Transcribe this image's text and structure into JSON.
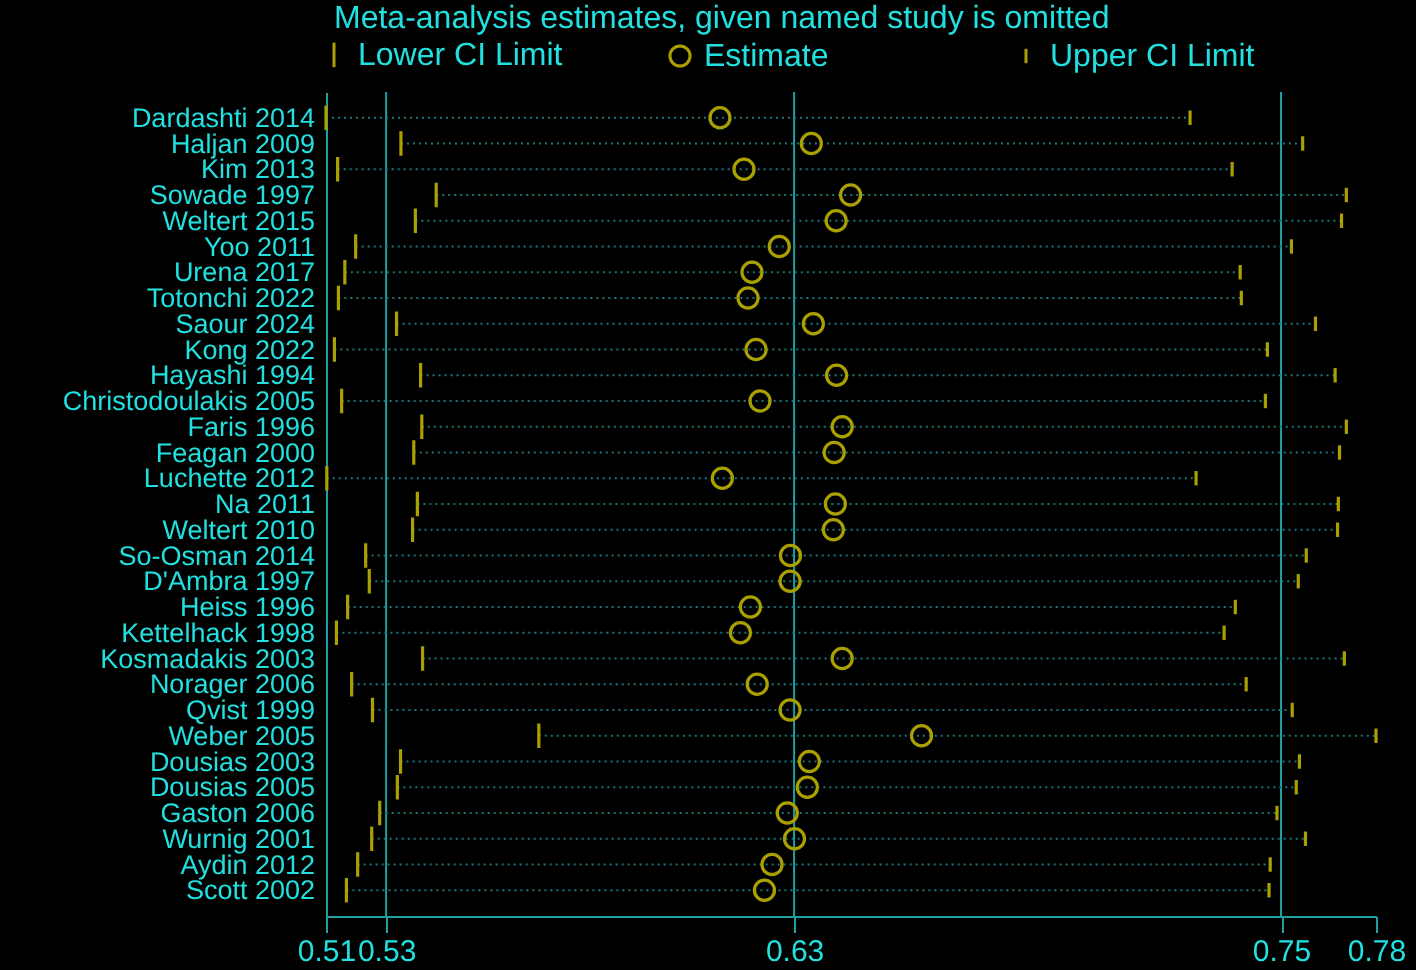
{
  "chart_data": {
    "type": "scatter",
    "orientation": "horizontal",
    "title": "Meta-analysis estimates, given named study is omitted",
    "categories": [
      "Dardashti 2014",
      "Haljan 2009",
      "Kim 2013",
      "Sowade 1997",
      "Weltert 2015",
      "Yoo 2011",
      "Urena 2017",
      "Totonchi 2022",
      "Saour 2024",
      "Kong 2022",
      "Hayashi 1994",
      "Christodoulakis 2005",
      "Faris 1996",
      "Feagan 2000",
      "Luchette 2012",
      "Na 2011",
      "Weltert 2010",
      "So-Osman 2014",
      "D'Ambra 1997",
      "Heiss 1996",
      "Kettelhack 1998",
      "Kosmadakis 2003",
      "Norager 2006",
      "Qvist 1999",
      "Weber 2005",
      "Dousias 2003",
      "Dousias 2005",
      "Gaston 2006",
      "Wurnig 2001",
      "Aydin 2012",
      "Scott 2002"
    ],
    "series": [
      {
        "name": "Lower CI Limit",
        "color": "#aaa000",
        "values": [
          0.5135,
          0.5322,
          0.5164,
          0.541,
          0.5358,
          0.5209,
          0.5182,
          0.5166,
          0.5311,
          0.5156,
          0.5371,
          0.5174,
          0.5374,
          0.5354,
          0.5137,
          0.5363,
          0.5351,
          0.5234,
          0.5243,
          0.5189,
          0.5161,
          0.5376,
          0.5199,
          0.5251,
          0.5666,
          0.5321,
          0.5313,
          0.5269,
          0.5249,
          0.5214,
          0.5186
        ]
      },
      {
        "name": "Estimate",
        "color": "#aaa000",
        "marker": "circle",
        "values": [
          0.6118,
          0.6346,
          0.6178,
          0.6444,
          0.6408,
          0.6266,
          0.6198,
          0.6188,
          0.6351,
          0.6208,
          0.6409,
          0.6218,
          0.6423,
          0.6403,
          0.6124,
          0.6406,
          0.6401,
          0.6294,
          0.6293,
          0.6194,
          0.6169,
          0.6423,
          0.6211,
          0.6293,
          0.6621,
          0.6341,
          0.6336,
          0.6286,
          0.6304,
          0.6248,
          0.6229
        ]
      },
      {
        "name": "Upper CI Limit",
        "color": "#aaa000",
        "values": [
          0.7291,
          0.7572,
          0.7396,
          0.7681,
          0.7669,
          0.7544,
          0.7416,
          0.7419,
          0.7604,
          0.7484,
          0.7653,
          0.7479,
          0.7681,
          0.7664,
          0.7306,
          0.7661,
          0.7659,
          0.7581,
          0.7561,
          0.7404,
          0.7376,
          0.7676,
          0.7431,
          0.7546,
          0.7755,
          0.7564,
          0.7556,
          0.7508,
          0.7579,
          0.7491,
          0.7488
        ]
      }
    ],
    "xlim": [
      0.5135,
      0.7755
    ],
    "xticks": [
      {
        "value": 0.5135,
        "label": "0.51"
      },
      {
        "value": 0.5285,
        "label": "0.53"
      },
      {
        "value": 0.6303,
        "label": "0.63"
      },
      {
        "value": 0.7518,
        "label": "0.75"
      },
      {
        "value": 0.7755,
        "label": "0.78"
      }
    ],
    "ref_lines": [
      {
        "axis": "x",
        "value": 0.5285,
        "color": "#1fa0a0"
      },
      {
        "axis": "x",
        "value": 0.6303,
        "color": "#1fa0a0"
      },
      {
        "axis": "x",
        "value": 0.7518,
        "color": "#1fa0a0"
      }
    ],
    "legend": "top",
    "line_style": "dotted"
  }
}
